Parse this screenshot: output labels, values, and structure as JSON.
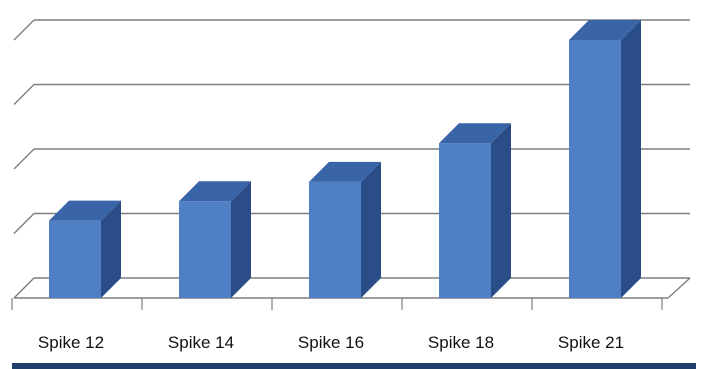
{
  "chart_data": {
    "type": "bar",
    "style": "3d",
    "categories": [
      "Spike 12",
      "Spike 14",
      "Spike 16",
      "Spike 18",
      "Spike 21"
    ],
    "values": [
      1.2,
      1.5,
      1.8,
      2.4,
      4.0
    ],
    "ylim": [
      0,
      4
    ],
    "grid": true,
    "legend": "none",
    "title": "",
    "xlabel": "",
    "ylabel": "",
    "colors": {
      "bar_front": "#4f7fc4",
      "bar_top": "#3a64a8",
      "bar_side": "#2b4d87",
      "gridline": "#7f7f7f",
      "bottom_rule": "#1f3f6b"
    }
  }
}
